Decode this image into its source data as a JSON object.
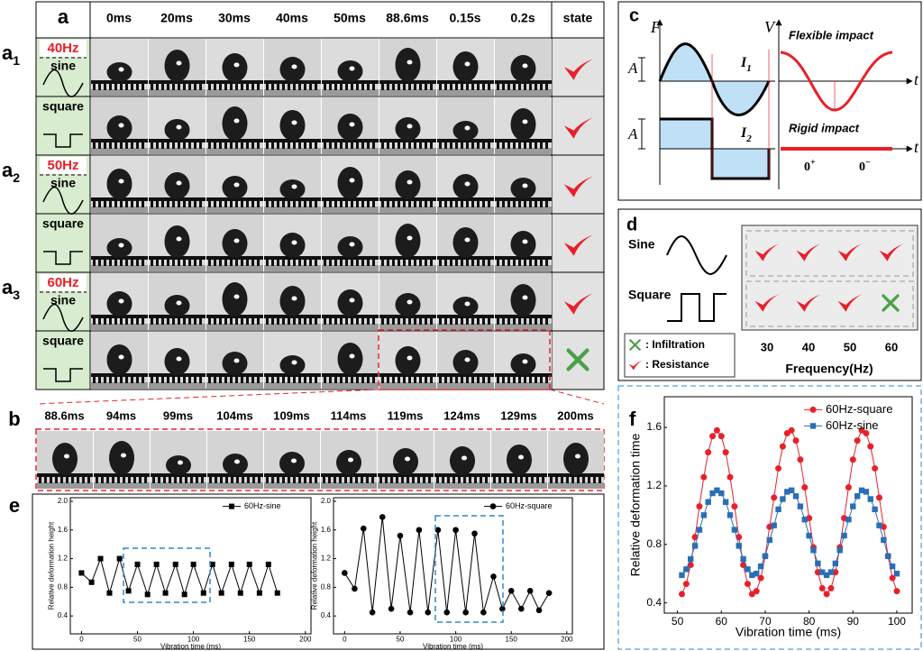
{
  "panel_a": {
    "label": "a",
    "times": [
      "0ms",
      "20ms",
      "30ms",
      "40ms",
      "50ms",
      "88.6ms",
      "0.15s",
      "0.2s"
    ],
    "state_header": "state",
    "groups": [
      {
        "letter": "a",
        "sub": "1",
        "freq": "40Hz",
        "rows": [
          "sine",
          "square"
        ]
      },
      {
        "letter": "a",
        "sub": "2",
        "freq": "50Hz",
        "rows": [
          "sine",
          "square"
        ]
      },
      {
        "letter": "a",
        "sub": "3",
        "freq": "60Hz",
        "rows": [
          "sine",
          "square"
        ]
      }
    ]
  },
  "panel_b": {
    "label": "b",
    "times": [
      "88.6ms",
      "94ms",
      "99ms",
      "104ms",
      "109ms",
      "114ms",
      "119ms",
      "124ms",
      "129ms",
      "200ms"
    ]
  },
  "panel_c": {
    "label": "c",
    "axis_F": "F",
    "axis_V": "V",
    "amplitude": "A",
    "impulse_symbol": "I",
    "impulse_subs": [
      "1",
      "2"
    ],
    "time_symbol": "t",
    "flexible": "Flexible impact",
    "rigid": "Rigid impact",
    "limit_base": "0",
    "limit_signs": [
      "+",
      "−"
    ]
  },
  "panel_d": {
    "label": "d",
    "waves": [
      "Sine",
      "Square"
    ],
    "legend": [
      ": Infiltration",
      ": Resistance"
    ],
    "frequencies": [
      30,
      40,
      50,
      60
    ],
    "xlabel": "Frequency(Hz)"
  },
  "panel_e": {
    "label": "e"
  },
  "panel_f": {
    "label": "f"
  },
  "chart_data": [
    {
      "type": "line",
      "ylabel": "Relative deformation height",
      "xlabel": "Vibration time (ms)",
      "x": [
        0,
        9,
        17,
        25,
        34,
        42,
        50,
        59,
        67,
        75,
        84,
        92,
        100,
        109,
        117,
        125,
        134,
        142,
        150,
        159,
        167,
        175
      ],
      "series": [
        {
          "name": "60Hz-sine",
          "color": "#000000",
          "marker": "square",
          "values": [
            1.0,
            0.87,
            1.2,
            0.72,
            1.2,
            0.75,
            1.12,
            0.7,
            1.12,
            0.72,
            1.12,
            0.7,
            1.12,
            0.72,
            1.12,
            0.72,
            1.12,
            0.72,
            1.12,
            0.72,
            1.12,
            0.72
          ]
        }
      ],
      "xlim": [
        -10,
        205
      ],
      "ylim": [
        0.15,
        2.05
      ],
      "xticks": [
        0,
        50,
        100,
        150,
        200
      ],
      "yticks": [
        0.4,
        0.8,
        1.2,
        1.6,
        {
          "value": 2,
          "label": "2.0"
        }
      ],
      "legend": "upper right"
    },
    {
      "type": "line",
      "ylabel": "Relative deformation height",
      "xlabel": "Vibration time (ms)",
      "x": [
        0,
        9,
        17,
        25,
        34,
        42,
        50,
        59,
        67,
        75,
        84,
        92,
        100,
        109,
        117,
        125,
        134,
        142,
        150,
        159,
        167,
        175,
        184
      ],
      "series": [
        {
          "name": "60Hz-square",
          "color": "#000000",
          "marker": "circle",
          "values": [
            1.0,
            0.78,
            1.62,
            0.45,
            1.78,
            0.5,
            1.52,
            0.45,
            1.6,
            0.45,
            1.6,
            0.45,
            1.6,
            0.45,
            1.55,
            0.45,
            0.95,
            0.5,
            0.75,
            0.5,
            0.75,
            0.48,
            0.72
          ]
        }
      ],
      "xlim": [
        -10,
        205
      ],
      "ylim": [
        0.15,
        2.05
      ],
      "xticks": [
        0,
        50,
        100,
        150,
        200
      ],
      "yticks": [
        0.4,
        0.8,
        1.2,
        1.6,
        {
          "value": 2,
          "label": "2.0"
        }
      ],
      "legend": "upper right"
    },
    {
      "type": "line",
      "ylabel": "Relative deformation time",
      "xlabel": "Vibration time (ms)",
      "x": [
        51,
        52,
        53,
        54,
        55,
        56,
        57,
        58,
        59,
        60,
        61,
        62,
        63,
        64,
        65,
        66,
        67,
        68,
        69,
        70,
        71,
        72,
        73,
        74,
        75,
        76,
        77,
        78,
        79,
        80,
        81,
        82,
        83,
        84,
        85,
        86,
        87,
        88,
        89,
        90,
        91,
        92,
        93,
        94,
        95,
        96,
        97,
        98,
        99,
        100
      ],
      "series": [
        {
          "name": "60Hz-square",
          "color": "#e8202a",
          "marker": "circle",
          "values": [
            0.46,
            0.53,
            0.66,
            0.85,
            1.06,
            1.26,
            1.43,
            1.54,
            1.58,
            1.54,
            1.43,
            1.26,
            1.06,
            0.85,
            0.66,
            0.53,
            0.46,
            0.48,
            0.57,
            0.72,
            0.92,
            1.12,
            1.32,
            1.47,
            1.56,
            1.58,
            1.51,
            1.38,
            1.19,
            0.98,
            0.78,
            0.61,
            0.5,
            0.46,
            0.5,
            0.61,
            0.78,
            0.98,
            1.19,
            1.38,
            1.51,
            1.58,
            1.56,
            1.47,
            1.32,
            1.12,
            0.92,
            0.72,
            0.57,
            0.48
          ]
        },
        {
          "name": "60Hz-sine",
          "color": "#2a6eb5",
          "marker": "square",
          "values": [
            0.59,
            0.63,
            0.7,
            0.79,
            0.9,
            1.0,
            1.09,
            1.15,
            1.17,
            1.15,
            1.09,
            1.0,
            0.9,
            0.79,
            0.7,
            0.63,
            0.59,
            0.6,
            0.65,
            0.72,
            0.83,
            0.93,
            1.04,
            1.11,
            1.16,
            1.17,
            1.13,
            1.06,
            0.97,
            0.86,
            0.76,
            0.67,
            0.61,
            0.59,
            0.61,
            0.67,
            0.76,
            0.86,
            0.97,
            1.06,
            1.13,
            1.17,
            1.16,
            1.11,
            1.04,
            0.93,
            0.83,
            0.72,
            0.65,
            0.6
          ]
        }
      ],
      "xlim": [
        47,
        103.5
      ],
      "ylim": [
        0.33,
        1.81
      ],
      "xticks": [
        50,
        60,
        70,
        80,
        90,
        100
      ],
      "yticks": [
        0.4,
        0.8,
        1.2,
        1.6
      ],
      "legend": "upper right"
    }
  ]
}
